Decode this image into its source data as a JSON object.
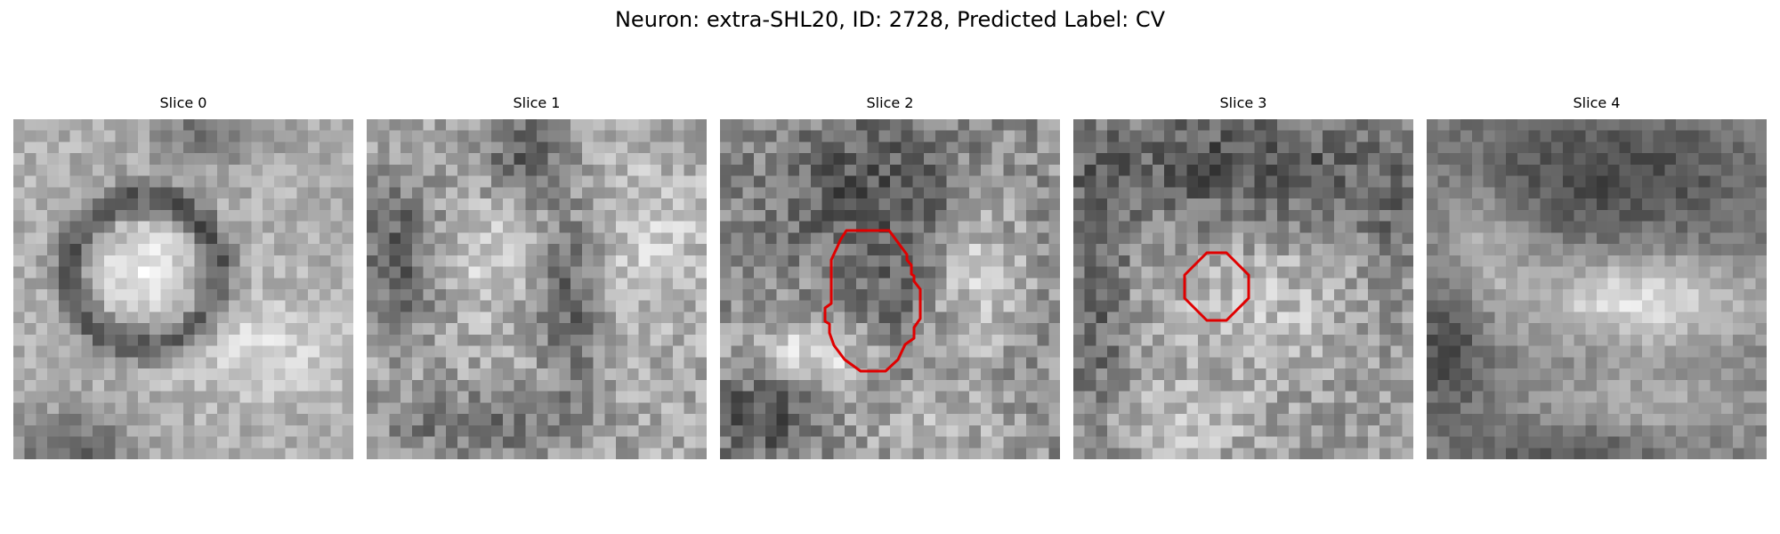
{
  "figure": {
    "title": "Neuron: extra-SHL20, ID: 2728, Predicted Label: CV"
  },
  "panels": [
    {
      "title": "Slice 0",
      "has_contour": false
    },
    {
      "title": "Slice 1",
      "has_contour": false
    },
    {
      "title": "Slice 2",
      "has_contour": true
    },
    {
      "title": "Slice 3",
      "has_contour": true
    },
    {
      "title": "Slice 4",
      "has_contour": false
    }
  ],
  "style": {
    "contour_color": "#e00000",
    "colormap": "grayscale"
  }
}
